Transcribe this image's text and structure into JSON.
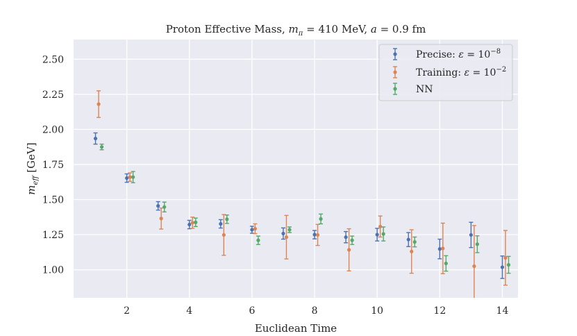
{
  "chart_data": {
    "type": "scatter",
    "title": "Proton Effective Mass, mπ = 410 MeV, a = 0.9 fm",
    "xlabel": "Euclidean Time",
    "ylabel": "m_eff [GeV]",
    "xlim": [
      0.3,
      14.5
    ],
    "ylim": [
      0.8,
      2.64
    ],
    "xticks": [
      2,
      4,
      6,
      8,
      10,
      12,
      14
    ],
    "yticks": [
      1.0,
      1.25,
      1.5,
      1.75,
      2.0,
      2.25,
      2.5
    ],
    "ytick_labels": [
      "1.00",
      "1.25",
      "1.50",
      "1.75",
      "2.00",
      "2.25",
      "2.50"
    ],
    "grid": true,
    "legend_position": "top-right",
    "series": [
      {
        "name": "Precise: ε = 10^−8",
        "color": "#4c72b0",
        "x": [
          1,
          2,
          3,
          4,
          5,
          6,
          7,
          8,
          9,
          10,
          11,
          12,
          13,
          14
        ],
        "y": [
          1.935,
          1.653,
          1.455,
          1.322,
          1.327,
          1.285,
          1.258,
          1.25,
          1.232,
          1.25,
          1.215,
          1.148,
          1.248,
          1.018
        ],
        "err": [
          0.04,
          0.03,
          0.03,
          0.03,
          0.03,
          0.025,
          0.04,
          0.03,
          0.04,
          0.045,
          0.05,
          0.07,
          0.09,
          0.08
        ]
      },
      {
        "name": "Training: ε = 10^−2",
        "color": "#dd8452",
        "x": [
          1.1,
          2.1,
          3.1,
          4.1,
          5.1,
          6.1,
          7.1,
          8.1,
          9.1,
          10.1,
          11.1,
          12.1,
          13.1,
          14.1
        ],
        "y": [
          2.18,
          1.66,
          1.365,
          1.335,
          1.248,
          1.292,
          1.232,
          1.248,
          1.142,
          1.308,
          1.13,
          1.152,
          1.025,
          1.085
        ],
        "err": [
          0.095,
          0.03,
          0.075,
          0.04,
          0.145,
          0.035,
          0.155,
          0.075,
          0.15,
          0.075,
          0.155,
          0.18,
          0.29,
          0.195
        ]
      },
      {
        "name": "NN",
        "color": "#55a868",
        "x": [
          1.2,
          2.2,
          3.2,
          4.2,
          5.2,
          6.2,
          7.2,
          8.2,
          9.2,
          10.2,
          11.2,
          12.2,
          13.2,
          14.2
        ],
        "y": [
          1.875,
          1.66,
          1.447,
          1.338,
          1.36,
          1.21,
          1.285,
          1.362,
          1.21,
          1.255,
          1.198,
          1.045,
          1.182,
          1.035
        ],
        "err": [
          0.02,
          0.04,
          0.035,
          0.03,
          0.03,
          0.03,
          0.02,
          0.035,
          0.03,
          0.05,
          0.035,
          0.055,
          0.06,
          0.06
        ]
      }
    ]
  }
}
